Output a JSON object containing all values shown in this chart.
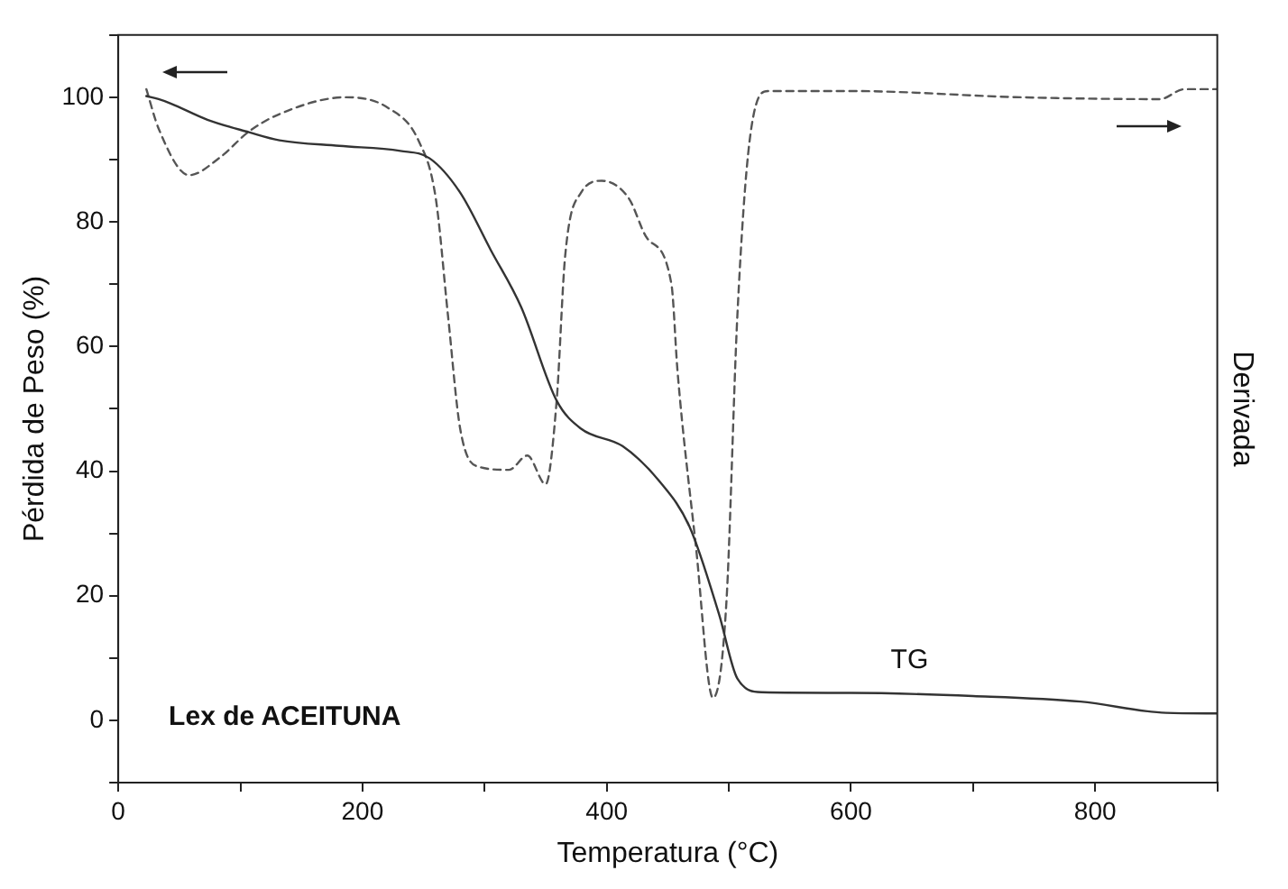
{
  "chart_data": {
    "type": "line",
    "xlabel": "Temperatura (°C)",
    "ylabel": "Pérdida de Peso (%)",
    "y2label": "Derivada",
    "xlim": [
      0,
      900
    ],
    "xticks": [
      0,
      {
        "value": 100,
        "label": null
      },
      200,
      {
        "value": 300,
        "label": null
      },
      400,
      {
        "value": 500,
        "label": null
      },
      600,
      {
        "value": 700,
        "label": null
      },
      800,
      {
        "value": 900,
        "label": null
      }
    ],
    "ylim": [
      -10,
      110
    ],
    "yticks": [
      {
        "value": -10,
        "label": null
      },
      0,
      {
        "value": 10,
        "label": null
      },
      20,
      {
        "value": 30,
        "label": null
      },
      40,
      {
        "value": 50,
        "label": null
      },
      60,
      {
        "value": 70,
        "label": null
      },
      80,
      {
        "value": 90,
        "label": null
      },
      100,
      {
        "value": 110,
        "label": null
      }
    ],
    "series": [
      {
        "color": "#333333",
        "line_style": "solid",
        "x": [
          23,
          33,
          43,
          73,
          107,
          132,
          181,
          231,
          255,
          280,
          305,
          330,
          359,
          379,
          413,
          443,
          468,
          492,
          507,
          527,
          600,
          700,
          788,
          858,
          900
        ],
        "values": [
          100.2,
          99.7,
          99,
          96.4,
          94.4,
          93.1,
          92.2,
          91.4,
          90.2,
          84.7,
          75.5,
          66.3,
          51.3,
          46.8,
          44,
          38.4,
          31,
          17,
          6.7,
          4.5,
          4.4,
          3.9,
          3,
          1.2,
          1.1
        ]
      },
      {
        "color": "#555555",
        "line_style": "dashed",
        "x": [
          23,
          33,
          58,
          83,
          107,
          132,
          186,
          221,
          246,
          260,
          270,
          280,
          295,
          320,
          335,
          350,
          359,
          366,
          379,
          396,
          418,
          433,
          453,
          458,
          473,
          487,
          498,
          507,
          517,
          532,
          600,
          739,
          853,
          873,
          900
        ],
        "values": [
          101.3,
          95,
          87.5,
          90.3,
          94.5,
          97.3,
          100,
          98.3,
          93,
          83.8,
          65,
          46.8,
          40.7,
          40.2,
          42.5,
          37.9,
          51.3,
          74.6,
          84.7,
          86.6,
          83.8,
          77.4,
          70,
          56,
          28,
          3.6,
          18.9,
          65,
          93,
          101,
          101,
          100,
          99.7,
          101.3,
          101.3
        ]
      }
    ],
    "annotations": [
      "Lex de ACEITUNA",
      "TG"
    ],
    "grid": false,
    "legend": false,
    "marker": "none"
  }
}
